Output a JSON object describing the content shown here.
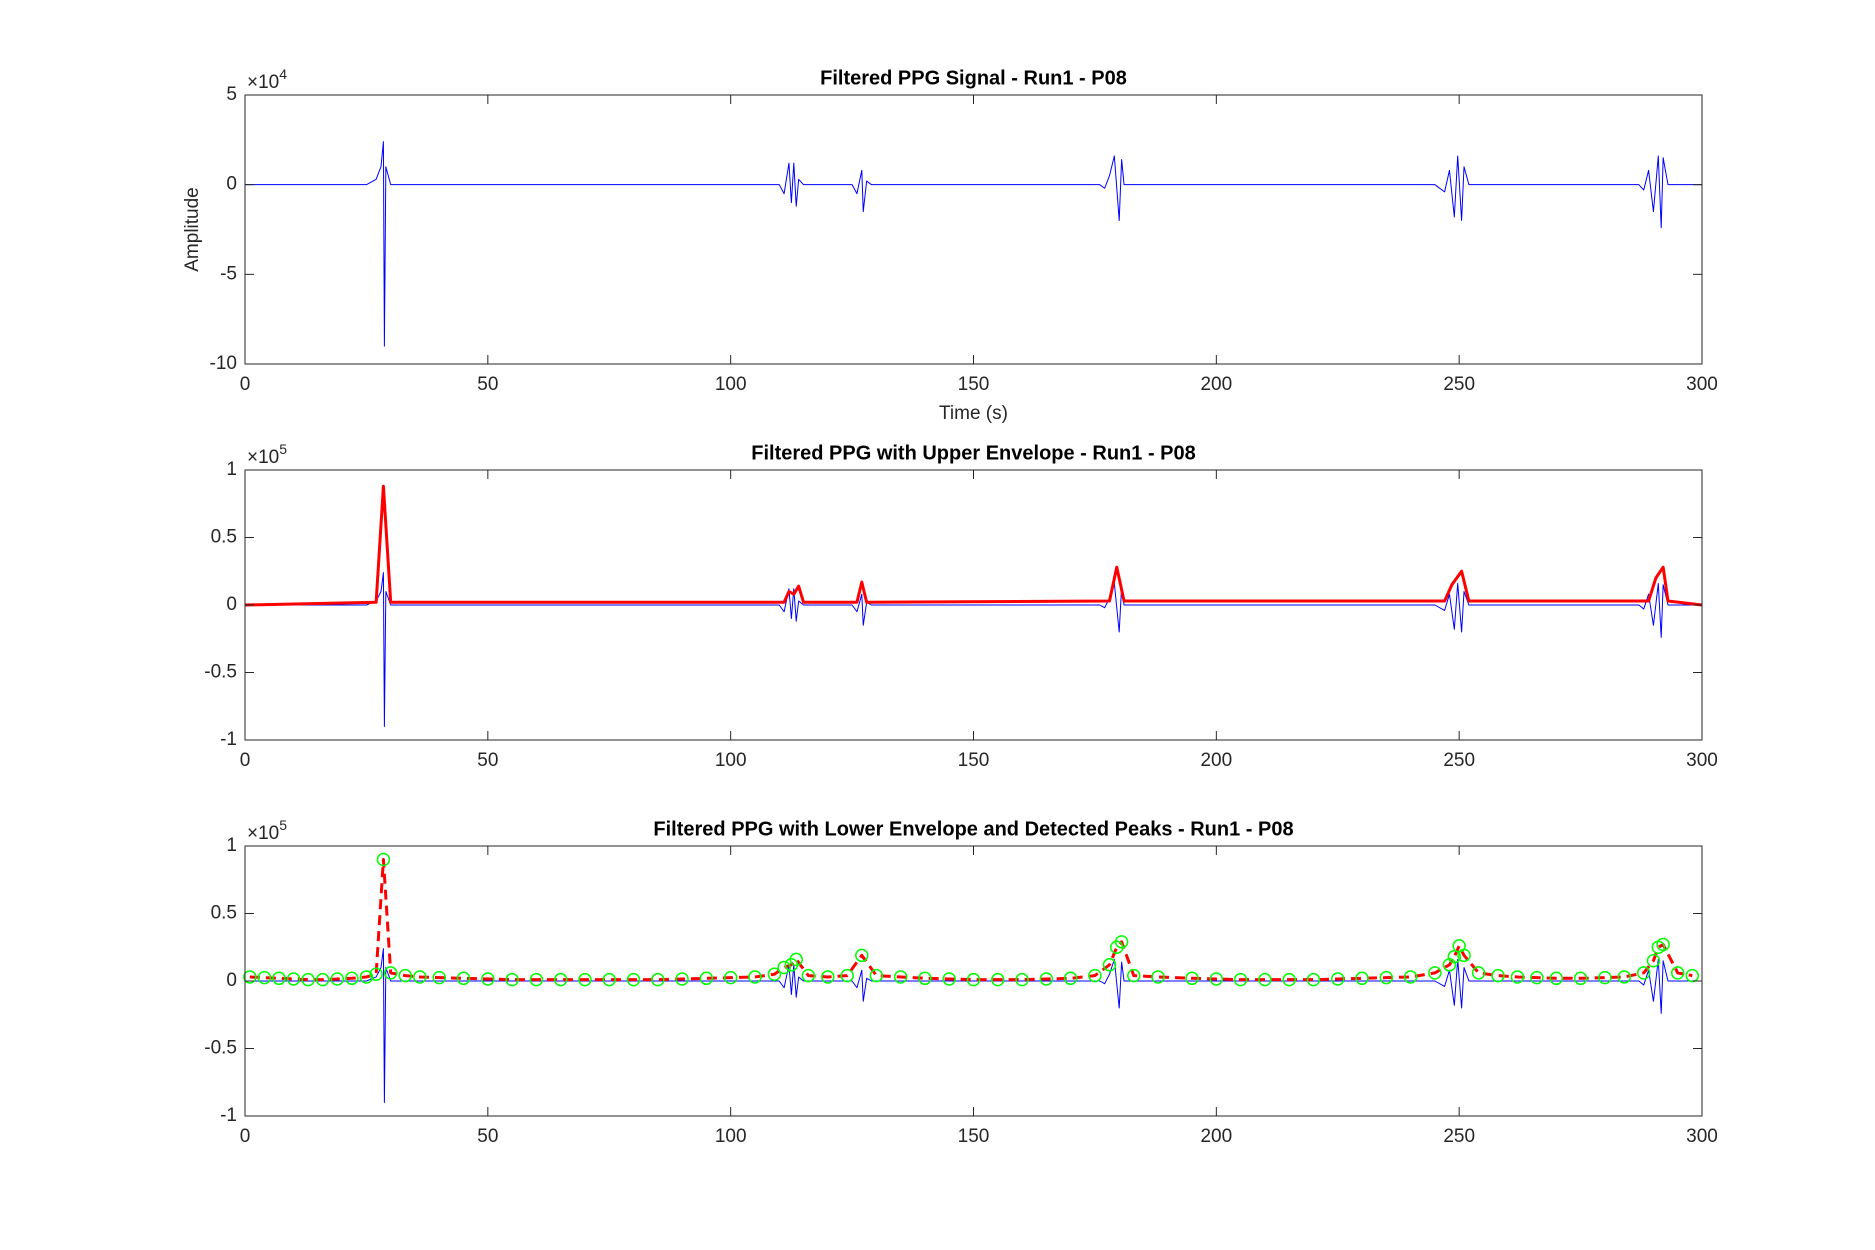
{
  "chart_data": [
    {
      "type": "line",
      "title": "Filtered PPG Signal - Run1 - P08",
      "xlabel": "Time (s)",
      "ylabel": "Amplitude",
      "y_multiplier_base": "×10",
      "y_multiplier_exponent": "4",
      "xlim": [
        0,
        300
      ],
      "xticks": [
        0,
        50,
        100,
        150,
        200,
        250,
        300
      ],
      "ylim": [
        -10,
        5
      ],
      "yticks": [
        -10,
        -5,
        0,
        5
      ],
      "series": [
        {
          "color": "#0000ff",
          "line_width": 1,
          "x": [
            0,
            25,
            27,
            28,
            28.5,
            28.7,
            29,
            30,
            67,
            110,
            111,
            112,
            112.5,
            113,
            113.5,
            114,
            115,
            125,
            126,
            127,
            127.3,
            128,
            129,
            176,
            177,
            178,
            179,
            180,
            180.5,
            181,
            245,
            247,
            248,
            249,
            249.7,
            250.5,
            251,
            252,
            287,
            288,
            289,
            290,
            291,
            291.6,
            292,
            293,
            300
          ],
          "values": [
            0,
            0,
            0.3,
            1,
            2.4,
            -9,
            1,
            0,
            0,
            0,
            -0.5,
            1.2,
            -1,
            1.2,
            -1.2,
            0.3,
            0,
            0,
            -0.5,
            0.8,
            -1.5,
            0.2,
            0,
            0,
            -0.2,
            0.5,
            1.6,
            -2,
            1.4,
            0,
            0,
            -0.4,
            0.8,
            -1.8,
            1.6,
            -2,
            1,
            0,
            0,
            -0.3,
            0.8,
            -1.5,
            1.6,
            -2.4,
            1.5,
            0,
            0
          ]
        }
      ]
    },
    {
      "type": "line",
      "title": "Filtered PPG with Upper Envelope - Run1 - P08",
      "y_multiplier_base": "×10",
      "y_multiplier_exponent": "5",
      "xlim": [
        0,
        300
      ],
      "xticks": [
        0,
        50,
        100,
        150,
        200,
        250,
        300
      ],
      "ylim": [
        -1,
        1
      ],
      "yticks": [
        -1,
        -0.5,
        0,
        0.5,
        1
      ],
      "series": [
        {
          "color": "#0000ff",
          "line_width": 1,
          "x": [
            0,
            25,
            27,
            28,
            28.5,
            28.7,
            29,
            30,
            67,
            110,
            111,
            112,
            112.5,
            113,
            113.5,
            114,
            115,
            125,
            126,
            127,
            127.3,
            128,
            129,
            176,
            177,
            178,
            179,
            180,
            180.5,
            181,
            245,
            247,
            248,
            249,
            249.7,
            250.5,
            251,
            252,
            287,
            288,
            289,
            290,
            291,
            291.6,
            292,
            293,
            300
          ],
          "values": [
            0,
            0,
            0.03,
            0.1,
            0.24,
            -0.9,
            0.1,
            0,
            0,
            0,
            -0.05,
            0.12,
            -0.1,
            0.12,
            -0.12,
            0.03,
            0,
            0,
            -0.05,
            0.08,
            -0.15,
            0.02,
            0,
            0,
            -0.02,
            0.05,
            0.16,
            -0.2,
            0.14,
            0,
            0,
            -0.04,
            0.08,
            -0.18,
            0.16,
            -0.2,
            0.1,
            0,
            0,
            -0.03,
            0.08,
            -0.15,
            0.16,
            -0.24,
            0.15,
            0,
            0
          ]
        },
        {
          "color": "#ff0000",
          "line_width": 3,
          "x": [
            0,
            27,
            28.5,
            30,
            111,
            112,
            113,
            114,
            115,
            126,
            127,
            128,
            178,
            179.5,
            181,
            247,
            248.5,
            249.5,
            250.5,
            252,
            289,
            290.5,
            292,
            293,
            300
          ],
          "values": [
            0,
            0.02,
            0.88,
            0.02,
            0.02,
            0.1,
            0.08,
            0.14,
            0.02,
            0.02,
            0.17,
            0.02,
            0.03,
            0.28,
            0.03,
            0.03,
            0.15,
            0.2,
            0.25,
            0.03,
            0.03,
            0.2,
            0.28,
            0.03,
            0
          ]
        }
      ]
    },
    {
      "type": "line",
      "title": "Filtered PPG with Lower Envelope and Detected Peaks - Run1 - P08",
      "y_multiplier_base": "×10",
      "y_multiplier_exponent": "5",
      "xlim": [
        0,
        300
      ],
      "xticks": [
        0,
        50,
        100,
        150,
        200,
        250,
        300
      ],
      "ylim": [
        -1,
        1
      ],
      "yticks": [
        -1,
        -0.5,
        0,
        0.5,
        1
      ],
      "series": [
        {
          "color": "#0000ff",
          "line_width": 1,
          "x": [
            0,
            25,
            27,
            28,
            28.5,
            28.7,
            29,
            30,
            67,
            110,
            111,
            112,
            112.5,
            113,
            113.5,
            114,
            115,
            125,
            126,
            127,
            127.3,
            128,
            129,
            176,
            177,
            178,
            179,
            180,
            180.5,
            181,
            245,
            247,
            248,
            249,
            249.7,
            250.5,
            251,
            252,
            287,
            288,
            289,
            290,
            291,
            291.6,
            292,
            293,
            300
          ],
          "values": [
            0,
            0,
            0.03,
            0.1,
            0.24,
            -0.9,
            0.1,
            0,
            0,
            0,
            -0.05,
            0.12,
            -0.1,
            0.12,
            -0.12,
            0.03,
            0,
            0,
            -0.05,
            0.08,
            -0.15,
            0.02,
            0,
            0,
            -0.02,
            0.05,
            0.16,
            -0.2,
            0.14,
            0,
            0,
            -0.04,
            0.08,
            -0.18,
            0.16,
            -0.2,
            0.1,
            0,
            0,
            -0.03,
            0.08,
            -0.15,
            0.16,
            -0.24,
            0.15,
            0,
            0
          ]
        },
        {
          "color": "#ff0000",
          "line_width": 3,
          "line_style": "dashed",
          "marker": "circle",
          "marker_color": "#00ff00",
          "x": [
            1,
            4,
            7,
            10,
            13,
            16,
            19,
            22,
            25,
            27,
            28.5,
            30,
            33,
            36,
            40,
            45,
            50,
            55,
            60,
            65,
            70,
            75,
            80,
            85,
            90,
            95,
            100,
            105,
            109,
            111,
            112.5,
            113.5,
            116,
            120,
            124,
            127,
            130,
            135,
            140,
            145,
            150,
            155,
            160,
            165,
            170,
            175,
            178,
            179.5,
            180.5,
            183,
            188,
            195,
            200,
            205,
            210,
            215,
            220,
            225,
            230,
            235,
            240,
            245,
            248,
            249,
            250,
            251,
            254,
            258,
            262,
            266,
            270,
            275,
            280,
            284,
            288,
            290,
            291,
            292,
            295,
            298
          ],
          "values": [
            0.03,
            0.025,
            0.02,
            0.015,
            0.01,
            0.01,
            0.015,
            0.02,
            0.03,
            0.05,
            0.9,
            0.06,
            0.04,
            0.03,
            0.025,
            0.02,
            0.015,
            0.01,
            0.01,
            0.01,
            0.01,
            0.01,
            0.01,
            0.01,
            0.015,
            0.02,
            0.025,
            0.03,
            0.05,
            0.1,
            0.12,
            0.16,
            0.04,
            0.03,
            0.04,
            0.19,
            0.04,
            0.03,
            0.02,
            0.015,
            0.01,
            0.01,
            0.01,
            0.015,
            0.02,
            0.04,
            0.12,
            0.25,
            0.29,
            0.04,
            0.03,
            0.02,
            0.015,
            0.01,
            0.01,
            0.01,
            0.01,
            0.015,
            0.02,
            0.025,
            0.03,
            0.06,
            0.12,
            0.18,
            0.26,
            0.19,
            0.06,
            0.04,
            0.03,
            0.025,
            0.02,
            0.02,
            0.025,
            0.03,
            0.06,
            0.15,
            0.25,
            0.27,
            0.06,
            0.04
          ]
        }
      ]
    }
  ]
}
